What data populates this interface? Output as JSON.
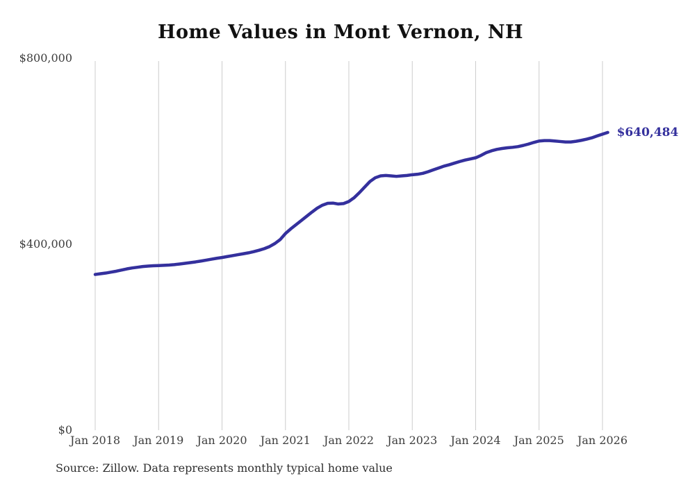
{
  "chart_data": {
    "type": "line",
    "title": "Home Values in Mont Vernon, NH",
    "source": "Source: Zillow. Data represents monthly typical home value",
    "annotation": {
      "text": "$640,484",
      "value": 640484
    },
    "line_color": "#34309d",
    "grid_color": "#cccccc",
    "text_color": "#3d3d3d",
    "title_color": "#111111",
    "grid": "vertical-only",
    "legend": "none",
    "ylim": [
      0,
      800000
    ],
    "y_ticks": [
      {
        "label": "$0",
        "value": 0
      },
      {
        "label": "$400,000",
        "value": 400000
      },
      {
        "label": "$800,000",
        "value": 800000
      }
    ],
    "x_tick_labels": [
      "Jan 2018",
      "Jan 2019",
      "Jan 2020",
      "Jan 2021",
      "Jan 2022",
      "Jan 2023",
      "Jan 2024",
      "Jan 2025",
      "Jan 2026"
    ],
    "series": [
      {
        "name": "Monthly typical home value",
        "start_month": "2018-01",
        "end_month": "2026-02",
        "values": [
          335000,
          336500,
          338000,
          340000,
          342000,
          344500,
          347000,
          349000,
          350500,
          352000,
          353000,
          353700,
          354200,
          354600,
          355200,
          356200,
          357500,
          359000,
          360500,
          362000,
          363800,
          365800,
          367800,
          369800,
          371500,
          373500,
          375500,
          377500,
          379500,
          381500,
          384000,
          387000,
          390500,
          395000,
          401500,
          410000,
          423000,
          433000,
          442000,
          451000,
          460000,
          469000,
          477500,
          484000,
          488000,
          488500,
          486500,
          487500,
          492000,
          500000,
          511000,
          523000,
          535000,
          543000,
          547000,
          548000,
          547000,
          546000,
          547000,
          548000,
          549500,
          550500,
          552500,
          556000,
          560000,
          564000,
          568000,
          571000,
          574500,
          578000,
          581000,
          583500,
          586000,
          591000,
          597000,
          601000,
          604000,
          606000,
          607500,
          608500,
          610000,
          612500,
          615500,
          619000,
          622000,
          623000,
          623000,
          622000,
          621000,
          620000,
          620000,
          621500,
          623500,
          626000,
          629000,
          633000,
          636800,
          640484
        ]
      }
    ]
  }
}
